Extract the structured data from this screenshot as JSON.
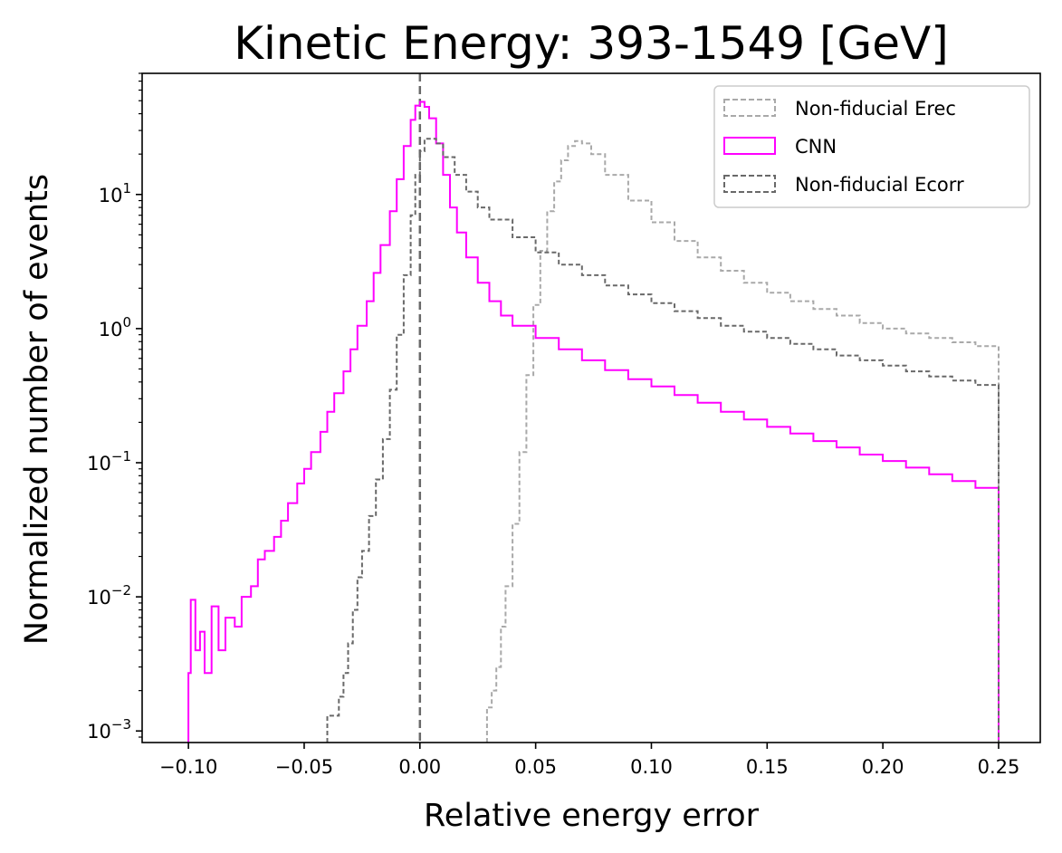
{
  "chart_data": {
    "type": "histogram-step",
    "title": "Kinetic Energy: 393-1549 [GeV]",
    "xlabel": "Relative energy error",
    "ylabel": "Normalized number of events",
    "xlim": [
      -0.12,
      0.268
    ],
    "ylim": [
      0.00082,
      80
    ],
    "yscale": "log",
    "x_ticks": [
      -0.1,
      -0.05,
      0.0,
      0.05,
      0.1,
      0.15,
      0.2,
      0.25
    ],
    "x_tick_labels": [
      "−0.10",
      "−0.05",
      "0.00",
      "0.05",
      "0.10",
      "0.15",
      "0.20",
      "0.25"
    ],
    "y_major_ticks": [
      0.001,
      0.01,
      0.1,
      1,
      10
    ],
    "y_tick_labels": [
      {
        "base": "10",
        "exp": "−3"
      },
      {
        "base": "10",
        "exp": "−2"
      },
      {
        "base": "10",
        "exp": "−1"
      },
      {
        "base": "10",
        "exp": "0"
      },
      {
        "base": "10",
        "exp": "1"
      }
    ],
    "vertical_line": {
      "x": 0.0,
      "style": "dashed",
      "color": "#696969"
    },
    "legend": {
      "placement": "top-right"
    },
    "series": [
      {
        "name": "Non-fiducial Erec",
        "color": "#a9a9a9",
        "style": "dashed",
        "points": [
          [
            0.029,
            0.00082
          ],
          [
            0.029,
            0.0015
          ],
          [
            0.031,
            0.002
          ],
          [
            0.033,
            0.003
          ],
          [
            0.035,
            0.006
          ],
          [
            0.037,
            0.012
          ],
          [
            0.04,
            0.035
          ],
          [
            0.043,
            0.12
          ],
          [
            0.046,
            0.45
          ],
          [
            0.049,
            1.5
          ],
          [
            0.052,
            3.8
          ],
          [
            0.055,
            7.5
          ],
          [
            0.058,
            12.5
          ],
          [
            0.061,
            18
          ],
          [
            0.064,
            23
          ],
          [
            0.067,
            25
          ],
          [
            0.07,
            24
          ],
          [
            0.074,
            20
          ],
          [
            0.08,
            14
          ],
          [
            0.09,
            9.0
          ],
          [
            0.1,
            6.2
          ],
          [
            0.11,
            4.5
          ],
          [
            0.12,
            3.4
          ],
          [
            0.13,
            2.7
          ],
          [
            0.14,
            2.2
          ],
          [
            0.15,
            1.85
          ],
          [
            0.16,
            1.6
          ],
          [
            0.17,
            1.4
          ],
          [
            0.18,
            1.25
          ],
          [
            0.19,
            1.1
          ],
          [
            0.2,
            1.0
          ],
          [
            0.21,
            0.92
          ],
          [
            0.22,
            0.85
          ],
          [
            0.23,
            0.79
          ],
          [
            0.24,
            0.74
          ],
          [
            0.25,
            0.7
          ],
          [
            0.25,
            0.00082
          ]
        ]
      },
      {
        "name": "CNN",
        "color": "#ff00ff",
        "style": "solid",
        "points": [
          [
            -0.1,
            0.00082
          ],
          [
            -0.1,
            0.0027
          ],
          [
            -0.099,
            0.0095
          ],
          [
            -0.097,
            0.004
          ],
          [
            -0.095,
            0.0055
          ],
          [
            -0.093,
            0.0027
          ],
          [
            -0.09,
            0.0085
          ],
          [
            -0.087,
            0.004
          ],
          [
            -0.084,
            0.007
          ],
          [
            -0.08,
            0.006
          ],
          [
            -0.077,
            0.01
          ],
          [
            -0.073,
            0.012
          ],
          [
            -0.07,
            0.019
          ],
          [
            -0.067,
            0.022
          ],
          [
            -0.063,
            0.028
          ],
          [
            -0.06,
            0.037
          ],
          [
            -0.057,
            0.05
          ],
          [
            -0.053,
            0.07
          ],
          [
            -0.05,
            0.09
          ],
          [
            -0.047,
            0.12
          ],
          [
            -0.043,
            0.17
          ],
          [
            -0.04,
            0.24
          ],
          [
            -0.037,
            0.33
          ],
          [
            -0.033,
            0.48
          ],
          [
            -0.03,
            0.7
          ],
          [
            -0.027,
            1.05
          ],
          [
            -0.023,
            1.6
          ],
          [
            -0.02,
            2.6
          ],
          [
            -0.017,
            4.2
          ],
          [
            -0.013,
            7.5
          ],
          [
            -0.01,
            13
          ],
          [
            -0.007,
            23
          ],
          [
            -0.004,
            36
          ],
          [
            -0.002,
            46
          ],
          [
            0.0,
            49
          ],
          [
            0.002,
            45
          ],
          [
            0.004,
            37
          ],
          [
            0.007,
            24
          ],
          [
            0.01,
            14
          ],
          [
            0.013,
            8.0
          ],
          [
            0.016,
            5.2
          ],
          [
            0.02,
            3.4
          ],
          [
            0.025,
            2.2
          ],
          [
            0.03,
            1.6
          ],
          [
            0.035,
            1.25
          ],
          [
            0.04,
            1.05
          ],
          [
            0.05,
            0.85
          ],
          [
            0.06,
            0.7
          ],
          [
            0.07,
            0.58
          ],
          [
            0.08,
            0.49
          ],
          [
            0.09,
            0.42
          ],
          [
            0.1,
            0.37
          ],
          [
            0.11,
            0.32
          ],
          [
            0.12,
            0.28
          ],
          [
            0.13,
            0.24
          ],
          [
            0.14,
            0.21
          ],
          [
            0.15,
            0.185
          ],
          [
            0.16,
            0.165
          ],
          [
            0.17,
            0.145
          ],
          [
            0.18,
            0.13
          ],
          [
            0.19,
            0.115
          ],
          [
            0.2,
            0.103
          ],
          [
            0.21,
            0.092
          ],
          [
            0.22,
            0.082
          ],
          [
            0.23,
            0.073
          ],
          [
            0.24,
            0.065
          ],
          [
            0.25,
            0.058
          ],
          [
            0.25,
            0.00082
          ]
        ]
      },
      {
        "name": "Non-fiducial Ecorr",
        "color": "#696969",
        "style": "dashed",
        "points": [
          [
            -0.04,
            0.00082
          ],
          [
            -0.04,
            0.0013
          ],
          [
            -0.037,
            0.0013
          ],
          [
            -0.035,
            0.0018
          ],
          [
            -0.033,
            0.0027
          ],
          [
            -0.031,
            0.0045
          ],
          [
            -0.029,
            0.008
          ],
          [
            -0.027,
            0.014
          ],
          [
            -0.025,
            0.022
          ],
          [
            -0.022,
            0.04
          ],
          [
            -0.019,
            0.075
          ],
          [
            -0.016,
            0.15
          ],
          [
            -0.013,
            0.35
          ],
          [
            -0.01,
            0.9
          ],
          [
            -0.007,
            2.5
          ],
          [
            -0.004,
            7.0
          ],
          [
            -0.002,
            14
          ],
          [
            0.0,
            21
          ],
          [
            0.002,
            26
          ],
          [
            0.004,
            26
          ],
          [
            0.007,
            24
          ],
          [
            0.01,
            19
          ],
          [
            0.015,
            14
          ],
          [
            0.02,
            10.5
          ],
          [
            0.025,
            8.0
          ],
          [
            0.03,
            6.5
          ],
          [
            0.04,
            4.8
          ],
          [
            0.05,
            3.7
          ],
          [
            0.06,
            3.0
          ],
          [
            0.07,
            2.5
          ],
          [
            0.08,
            2.1
          ],
          [
            0.09,
            1.8
          ],
          [
            0.1,
            1.55
          ],
          [
            0.11,
            1.35
          ],
          [
            0.12,
            1.2
          ],
          [
            0.13,
            1.05
          ],
          [
            0.14,
            0.95
          ],
          [
            0.15,
            0.85
          ],
          [
            0.16,
            0.77
          ],
          [
            0.17,
            0.7
          ],
          [
            0.18,
            0.63
          ],
          [
            0.19,
            0.58
          ],
          [
            0.2,
            0.53
          ],
          [
            0.21,
            0.48
          ],
          [
            0.22,
            0.44
          ],
          [
            0.23,
            0.41
          ],
          [
            0.24,
            0.38
          ],
          [
            0.25,
            0.36
          ],
          [
            0.25,
            0.00082
          ]
        ]
      }
    ]
  }
}
